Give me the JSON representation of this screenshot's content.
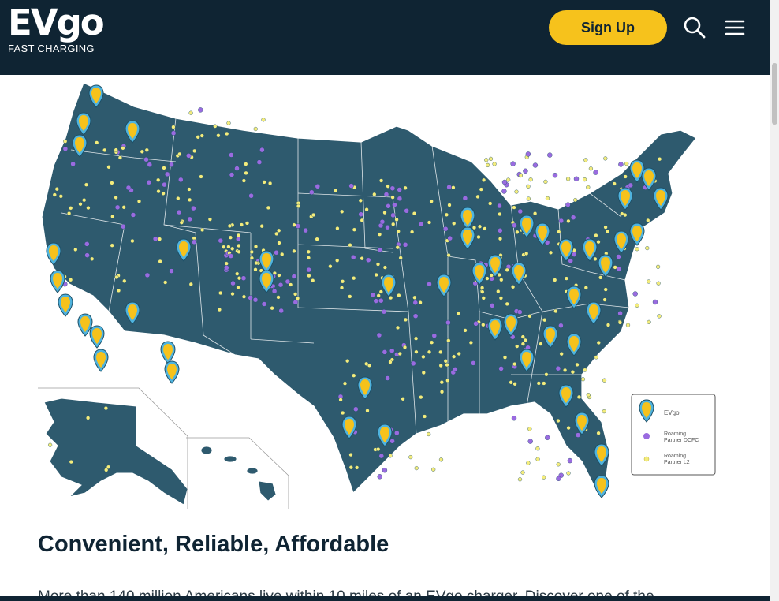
{
  "header": {
    "logo_text": "EVgo",
    "logo_subtitle": "FAST CHARGING",
    "signup_label": "Sign Up"
  },
  "icons": {
    "search": "search-icon",
    "menu": "hamburger-menu-icon"
  },
  "map": {
    "legend": {
      "evgo": "EVgo",
      "dcfc_line1": "Roaming",
      "dcfc_line2": "Partner DCFC",
      "l2_line1": "Roaming",
      "l2_line2": "Partner L2"
    },
    "colors": {
      "land": "#2e5a6e",
      "pin": "#f6c21c",
      "pin_ring": "#4fb3de",
      "dcfc": "#9a6be0",
      "l2": "#f4ec7c"
    }
  },
  "content": {
    "heading": "Convenient, Reliable, Affordable",
    "paragraph": "More than 140 million Americans live within 10 miles of an EVgo charger. Discover one of the"
  },
  "colors": {
    "header_bg": "#0f2433",
    "accent": "#f6c21c"
  }
}
